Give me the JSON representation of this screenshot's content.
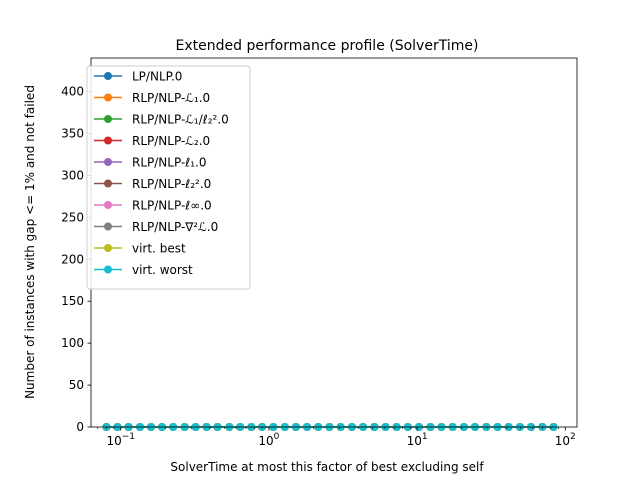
{
  "chart_data": {
    "type": "line",
    "title": "Extended performance profile (SolverTime)",
    "xlabel": "SolverTime at most this factor of best excluding self",
    "ylabel": "Number of instances with gap <= 1% and not failed",
    "xscale": "log",
    "xlim": [
      0.063,
      120
    ],
    "ylim": [
      0,
      440
    ],
    "xticks": [
      {
        "value": 0.1,
        "base": "10",
        "exp": "−1"
      },
      {
        "value": 1,
        "base": "10",
        "exp": "0"
      },
      {
        "value": 10,
        "base": "10",
        "exp": "1"
      },
      {
        "value": 100,
        "base": "10",
        "exp": "2"
      }
    ],
    "yticks": [
      0,
      50,
      100,
      150,
      200,
      250,
      300,
      350,
      400
    ],
    "legend_position": "top-left",
    "x": [
      0.08,
      0.095,
      0.113,
      0.135,
      0.16,
      0.19,
      0.226,
      0.27,
      0.32,
      0.38,
      0.45,
      0.54,
      0.64,
      0.76,
      0.9,
      1.07,
      1.28,
      1.52,
      1.81,
      2.15,
      2.56,
      3.05,
      3.63,
      4.32,
      5.14,
      6.12,
      7.28,
      8.66,
      10.3,
      12.3,
      14.6,
      17.4,
      20.7,
      24.6,
      29.3,
      34.9,
      41.5,
      49.4,
      58.8,
      70,
      83.3
    ],
    "series": [
      {
        "name": "LP/NLP.0",
        "color": "#1f77b4",
        "x_end": 5.14,
        "values": [
          0,
          0,
          0,
          0,
          0,
          0,
          0,
          0,
          0,
          0,
          0,
          0,
          0,
          0,
          0,
          0,
          0,
          0,
          0,
          0,
          0,
          0,
          0,
          0,
          0,
          0,
          0,
          0,
          0,
          0,
          0,
          0,
          0,
          0,
          0,
          0,
          0,
          0,
          0,
          0,
          0
        ]
      },
      {
        "name": "RLP/NLP-ℒ₁.0",
        "color": "#ff7f0e",
        "values": [
          0,
          0,
          0,
          0,
          0,
          0,
          0,
          0,
          0,
          0,
          0,
          0,
          0,
          0,
          0,
          0,
          0,
          0,
          0,
          0,
          0,
          0,
          0,
          0,
          0,
          0,
          0,
          0,
          0,
          0,
          0,
          0,
          0,
          0,
          0,
          0,
          0,
          0,
          0,
          0,
          0
        ]
      },
      {
        "name": "RLP/NLP-ℒ₁/ℓ₂².0",
        "color": "#2ca02c",
        "values": [
          0,
          0,
          0,
          0,
          0,
          0,
          0,
          0,
          0,
          0,
          0,
          0,
          0,
          0,
          0,
          0,
          0,
          0,
          0,
          0,
          0,
          0,
          0,
          0,
          0,
          0,
          0,
          0,
          0,
          0,
          0,
          0,
          0,
          0,
          0,
          0,
          0,
          0,
          0,
          0,
          0
        ]
      },
      {
        "name": "RLP/NLP-ℒ₂.0",
        "color": "#d62728",
        "values": [
          0,
          0,
          0,
          0,
          0,
          0,
          0,
          0,
          0,
          0,
          0,
          0,
          0,
          0,
          0,
          0,
          0,
          0,
          0,
          0,
          0,
          0,
          0,
          0,
          0,
          0,
          0,
          0,
          0,
          0,
          0,
          0,
          0,
          0,
          0,
          0,
          0,
          0,
          0,
          0,
          0
        ]
      },
      {
        "name": "RLP/NLP-ℓ₁.0",
        "color": "#9467bd",
        "values": [
          0,
          0,
          0,
          0,
          0,
          0,
          0,
          0,
          0,
          0,
          0,
          0,
          0,
          0,
          0,
          0,
          0,
          0,
          0,
          0,
          0,
          0,
          0,
          0,
          0,
          0,
          0,
          0,
          0,
          0,
          0,
          0,
          0,
          0,
          0,
          0,
          0,
          0,
          0,
          0,
          0
        ]
      },
      {
        "name": "RLP/NLP-ℓ₂².0",
        "color": "#8c564b",
        "values": [
          0,
          0,
          0,
          0,
          0,
          0,
          0,
          0,
          0,
          0,
          0,
          0,
          0,
          0,
          0,
          0,
          0,
          0,
          0,
          0,
          0,
          0,
          0,
          0,
          0,
          0,
          0,
          0,
          0,
          0,
          0,
          0,
          0,
          0,
          0,
          0,
          0,
          0,
          0,
          0,
          0
        ]
      },
      {
        "name": "RLP/NLP-ℓ∞.0",
        "color": "#e377c2",
        "values": [
          0,
          0,
          0,
          0,
          0,
          0,
          0,
          0,
          0,
          0,
          0,
          0,
          0,
          0,
          0,
          0,
          0,
          0,
          0,
          0,
          0,
          0,
          0,
          0,
          0,
          0,
          0,
          0,
          0,
          0,
          0,
          0,
          0,
          0,
          0,
          0,
          0,
          0,
          0,
          0,
          0
        ]
      },
      {
        "name": "RLP/NLP-∇²ℒ.0",
        "color": "#7f7f7f",
        "values": [
          0,
          0,
          0,
          0,
          0,
          0,
          0,
          0,
          0,
          0,
          0,
          0,
          0,
          0,
          0,
          0,
          0,
          0,
          0,
          0,
          0,
          0,
          0,
          0,
          0,
          0,
          0,
          0,
          0,
          0,
          0,
          0,
          0,
          0,
          0,
          0,
          0,
          0,
          0,
          0,
          0
        ]
      },
      {
        "name": "virt. best",
        "color": "#bcbd22",
        "values": [
          0,
          0,
          0,
          0,
          0,
          0,
          0,
          0,
          0,
          0,
          0,
          0,
          0,
          0,
          0,
          0,
          0,
          0,
          0,
          0,
          0,
          0,
          0,
          0,
          0,
          0,
          0,
          0,
          0,
          0,
          0,
          0,
          0,
          0,
          0,
          0,
          0,
          0,
          0,
          0,
          0
        ]
      },
      {
        "name": "virt. worst",
        "color": "#17becf",
        "values": [
          0,
          0,
          0,
          0,
          0,
          0,
          0,
          0,
          0,
          0,
          0,
          0,
          0,
          0,
          0,
          0,
          0,
          0,
          0,
          0,
          0,
          0,
          0,
          0,
          0,
          0,
          0,
          0,
          0,
          0,
          0,
          0,
          0,
          0,
          0,
          0,
          0,
          0,
          0,
          0,
          0
        ]
      }
    ]
  }
}
